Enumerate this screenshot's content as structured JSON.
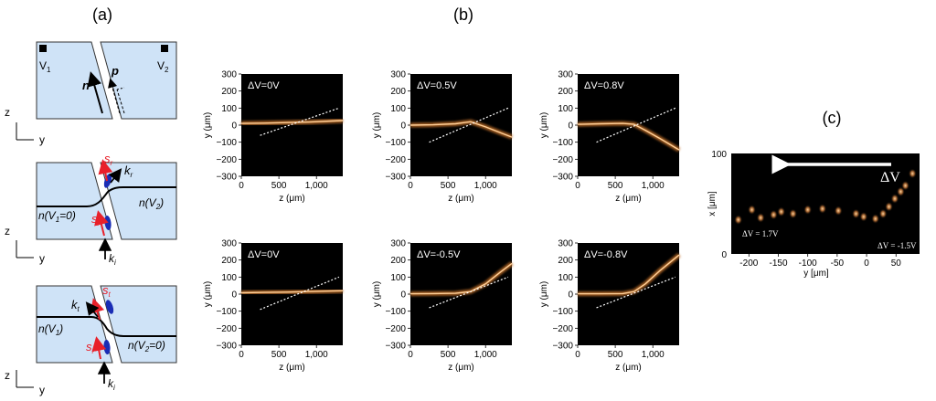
{
  "panels": {
    "a": {
      "label": "(a)",
      "diagrams": [
        {
          "electrode_left": "V",
          "electrode_left_sub": "1",
          "electrode_right": "V",
          "electrode_right_sub": "2",
          "vector_n": "n",
          "vector_p": "p",
          "axis_z": "z",
          "axis_y": "y"
        },
        {
          "beam_k_r": "k",
          "beam_k_r_sub": "r",
          "polarization_s_top": "s",
          "polarization_s_top_sub": "r",
          "polarization_s_bottom": "s",
          "polarization_s_bottom_sub": "i",
          "index_left": "n(V",
          "index_left_sub": "1",
          "index_left_tail": "=0)",
          "index_right": "n(V",
          "index_right_sub": "2",
          "index_right_tail": ")",
          "beam_k_i": "k",
          "beam_k_i_sub": "i",
          "axis_z": "z",
          "axis_y": "y"
        },
        {
          "beam_k_t": "k",
          "beam_k_t_sub": "t",
          "polarization_s_top": "s",
          "polarization_s_top_sub": "t",
          "polarization_s_bottom": "s",
          "polarization_s_bottom_sub": "i",
          "index_left": "n(V",
          "index_left_sub": "1",
          "index_left_tail": ")",
          "index_right": "n(V",
          "index_right_sub": "2",
          "index_right_tail": "=0)",
          "beam_k_i": "k",
          "beam_k_i_sub": "i",
          "axis_z": "z",
          "axis_y": "y"
        }
      ]
    },
    "b": {
      "label": "(b)",
      "xlabel": "z (μm)",
      "ylabel": "y (μm)",
      "xticks": [
        "0",
        "500",
        "1,000"
      ],
      "yticks": [
        "300",
        "200",
        "100",
        "0",
        "−100",
        "−200",
        "−300"
      ],
      "plots": [
        {
          "label": "ΔV=0V"
        },
        {
          "label": "ΔV=0.5V"
        },
        {
          "label": "ΔV=0.8V"
        },
        {
          "label": "ΔV=0V"
        },
        {
          "label": "ΔV=-0.5V"
        },
        {
          "label": "ΔV=-0.8V"
        }
      ]
    },
    "c": {
      "label": "(c)",
      "xlabel": "y [μm]",
      "ylabel": "x [μm]",
      "xticks": [
        "-200",
        "-150",
        "-100",
        "-50",
        "0",
        "50"
      ],
      "yticks": [
        "100",
        "0"
      ],
      "arrow_label": "ΔV",
      "left_annotation": "ΔV = 1.7V",
      "right_annotation": "ΔV = -1.5V"
    }
  },
  "chart_data": [
    {
      "type": "line",
      "title": "ΔV=0V",
      "xlabel": "z (μm)",
      "ylabel": "y (μm)",
      "xlim": [
        0,
        1350
      ],
      "ylim": [
        -300,
        300
      ],
      "series": [
        {
          "name": "beam",
          "x": [
            0,
            300,
            600,
            900,
            1200,
            1350
          ],
          "y": [
            10,
            12,
            15,
            18,
            24,
            27
          ]
        },
        {
          "name": "reference",
          "x": [
            250,
            1300
          ],
          "y": [
            -60,
            100
          ]
        }
      ]
    },
    {
      "type": "line",
      "title": "ΔV=0.5V",
      "xlabel": "z (μm)",
      "ylabel": "y (μm)",
      "xlim": [
        0,
        1350
      ],
      "ylim": [
        -300,
        300
      ],
      "series": [
        {
          "name": "beam",
          "x": [
            0,
            300,
            600,
            800,
            1000,
            1200,
            1350
          ],
          "y": [
            0,
            2,
            8,
            20,
            -10,
            -45,
            -70
          ]
        },
        {
          "name": "reference",
          "x": [
            250,
            1300
          ],
          "y": [
            -100,
            100
          ]
        }
      ]
    },
    {
      "type": "line",
      "title": "ΔV=0.8V",
      "xlabel": "z (μm)",
      "ylabel": "y (μm)",
      "xlim": [
        0,
        1350
      ],
      "ylim": [
        -300,
        300
      ],
      "series": [
        {
          "name": "beam",
          "x": [
            0,
            300,
            600,
            750,
            900,
            1100,
            1350
          ],
          "y": [
            5,
            8,
            10,
            5,
            -30,
            -80,
            -145
          ]
        },
        {
          "name": "reference",
          "x": [
            250,
            1300
          ],
          "y": [
            -100,
            100
          ]
        }
      ]
    },
    {
      "type": "line",
      "title": "ΔV=0V",
      "xlabel": "z (μm)",
      "ylabel": "y (μm)",
      "xlim": [
        0,
        1350
      ],
      "ylim": [
        -300,
        300
      ],
      "series": [
        {
          "name": "beam",
          "x": [
            0,
            300,
            600,
            900,
            1200,
            1350
          ],
          "y": [
            8,
            10,
            12,
            15,
            18,
            20
          ]
        },
        {
          "name": "reference",
          "x": [
            250,
            1300
          ],
          "y": [
            -90,
            100
          ]
        }
      ]
    },
    {
      "type": "line",
      "title": "ΔV=-0.5V",
      "xlabel": "z (μm)",
      "ylabel": "y (μm)",
      "xlim": [
        0,
        1350
      ],
      "ylim": [
        -300,
        300
      ],
      "series": [
        {
          "name": "beam",
          "x": [
            0,
            300,
            600,
            800,
            1000,
            1200,
            1350
          ],
          "y": [
            2,
            3,
            5,
            15,
            60,
            130,
            180
          ]
        },
        {
          "name": "reference",
          "x": [
            250,
            1300
          ],
          "y": [
            -80,
            100
          ]
        }
      ]
    },
    {
      "type": "line",
      "title": "ΔV=-0.8V",
      "xlabel": "z (μm)",
      "ylabel": "y (μm)",
      "xlim": [
        0,
        1350
      ],
      "ylim": [
        -300,
        300
      ],
      "series": [
        {
          "name": "beam",
          "x": [
            0,
            300,
            600,
            750,
            900,
            1100,
            1350
          ],
          "y": [
            2,
            2,
            3,
            15,
            60,
            140,
            230
          ]
        },
        {
          "name": "reference",
          "x": [
            250,
            1300
          ],
          "y": [
            -80,
            100
          ]
        }
      ]
    },
    {
      "type": "scatter",
      "title": "",
      "xlabel": "y [μm]",
      "ylabel": "x [μm]",
      "xlim": [
        -230,
        90
      ],
      "ylim": [
        0,
        100
      ],
      "series": [
        {
          "name": "spots",
          "x": [
            -218,
            -195,
            -180,
            -158,
            -145,
            -125,
            -100,
            -75,
            -48,
            -18,
            -5,
            15,
            28,
            38,
            48,
            58,
            66,
            78
          ],
          "y": [
            34,
            44,
            36,
            39,
            42,
            40,
            44,
            45,
            43,
            40,
            37,
            35,
            40,
            47,
            55,
            62,
            68,
            80
          ]
        }
      ]
    }
  ]
}
